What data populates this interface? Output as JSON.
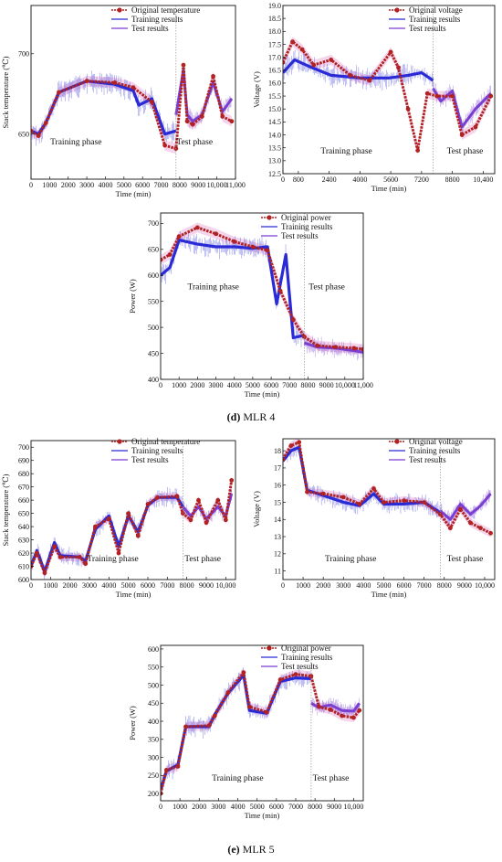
{
  "captions": {
    "d_letter": "(d)",
    "d_text": " MLR 4",
    "e_letter": "(e)",
    "e_text": " MLR 5"
  },
  "colors": {
    "original": "#b22222",
    "training": "#2a2ad6",
    "test": "#7a3fd1",
    "shade": "#f2c7e6"
  },
  "chart_data": [
    {
      "id": "d-temp",
      "type": "line",
      "ylabel": "Stack temperature (℃)",
      "xlabel": "Time (min)",
      "xlim": [
        0,
        11000
      ],
      "ylim": [
        622,
        730
      ],
      "xticks": [
        "0",
        "1000",
        "2000",
        "3000",
        "4000",
        "5000",
        "6000",
        "7000",
        "8000",
        "9000",
        "10,000",
        "11,000"
      ],
      "yticks": [
        "650",
        "700"
      ],
      "phase_labels": {
        "training": "Training phase",
        "test": "Test phase"
      },
      "split_x": 7800,
      "legend": [
        "Original temperature",
        "Training results",
        "Test results"
      ],
      "series": [
        {
          "name": "Original temperature",
          "x": [
            0,
            400,
            800,
            1500,
            3000,
            4500,
            5500,
            6500,
            7200,
            7800,
            8200,
            8400,
            8700,
            9200,
            9800,
            10300,
            10800
          ],
          "y": [
            652,
            649,
            657,
            676,
            683,
            682,
            679,
            670,
            643,
            641,
            693,
            658,
            656,
            661,
            686,
            661,
            658
          ]
        },
        {
          "name": "Training results",
          "x": [
            0,
            400,
            800,
            1500,
            3000,
            4500,
            5500,
            5800,
            6500,
            7200,
            7800
          ],
          "y": [
            652,
            650,
            657,
            676,
            683,
            681,
            677,
            668,
            672,
            650,
            652
          ]
        },
        {
          "name": "Test results",
          "x": [
            7800,
            8200,
            8400,
            8700,
            9200,
            9800,
            10300,
            10800
          ],
          "y": [
            662,
            690,
            662,
            658,
            662,
            682,
            664,
            672
          ]
        }
      ]
    },
    {
      "id": "d-volt",
      "type": "line",
      "ylabel": "Voltage (V)",
      "xlabel": "Time (min)",
      "xlim": [
        0,
        11000
      ],
      "ylim": [
        12.5,
        19.0
      ],
      "xticks": [
        "0",
        "800",
        "2400",
        "4000",
        "5600",
        "7200",
        "8800",
        "10,400"
      ],
      "yticks": [
        "12.5",
        "13.0",
        "13.5",
        "14.0",
        "14.5",
        "15.0",
        "15.5",
        "16.0",
        "16.5",
        "17.0",
        "17.5",
        "18.0",
        "18.5",
        "19.0"
      ],
      "phase_labels": {
        "training": "Training phase",
        "test": "Test phase"
      },
      "split_x": 7800,
      "legend": [
        "Original voltage",
        "Training results",
        "Test results"
      ],
      "series": [
        {
          "name": "Original voltage",
          "x": [
            0,
            500,
            1000,
            1600,
            2500,
            3500,
            4500,
            5600,
            6000,
            6500,
            7000,
            7500,
            8000,
            8800,
            9300,
            10000,
            10800
          ],
          "y": [
            16.8,
            17.6,
            17.3,
            16.7,
            16.9,
            16.3,
            16.1,
            17.2,
            16.6,
            15.0,
            13.4,
            15.6,
            15.5,
            15.5,
            14.0,
            14.3,
            15.5
          ]
        },
        {
          "name": "Training results",
          "x": [
            0,
            600,
            1500,
            2500,
            4000,
            5500,
            6500,
            7200,
            7800
          ],
          "y": [
            16.4,
            16.9,
            16.6,
            16.3,
            16.2,
            16.2,
            16.3,
            16.4,
            16.1
          ]
        },
        {
          "name": "Test results",
          "x": [
            7800,
            8200,
            8800,
            9300,
            10000,
            10800
          ],
          "y": [
            15.8,
            15.3,
            15.7,
            14.3,
            15.0,
            15.6
          ]
        }
      ]
    },
    {
      "id": "d-power",
      "type": "line",
      "ylabel": "Power (W)",
      "xlabel": "Time (min)",
      "xlim": [
        0,
        11000
      ],
      "ylim": [
        400,
        720
      ],
      "xticks": [
        "0",
        "1000",
        "2000",
        "3000",
        "4000",
        "5000",
        "6000",
        "7000",
        "8000",
        "9000",
        "10,000",
        "11,000"
      ],
      "yticks": [
        "400",
        "450",
        "500",
        "550",
        "600",
        "650",
        "700"
      ],
      "phase_labels": {
        "training": "Training phase",
        "test": "Test phase"
      },
      "split_x": 7800,
      "legend": [
        "Original power",
        "Training results",
        "Test results"
      ],
      "series": [
        {
          "name": "Original power",
          "x": [
            0,
            500,
            1000,
            2000,
            3000,
            4000,
            5000,
            5800,
            6500,
            7200,
            7800,
            8500,
            9500,
            10500,
            11000
          ],
          "y": [
            630,
            640,
            675,
            692,
            680,
            665,
            655,
            648,
            570,
            515,
            482,
            465,
            462,
            460,
            458
          ]
        },
        {
          "name": "Training results",
          "x": [
            0,
            500,
            1000,
            2000,
            3000,
            4000,
            5000,
            5800,
            6300,
            6800,
            7200,
            7800
          ],
          "y": [
            600,
            615,
            668,
            660,
            655,
            655,
            652,
            655,
            545,
            640,
            480,
            485
          ]
        },
        {
          "name": "Test results",
          "x": [
            7800,
            8500,
            9500,
            10500,
            11000
          ],
          "y": [
            470,
            462,
            460,
            455,
            452
          ]
        }
      ]
    },
    {
      "id": "e-temp",
      "type": "line",
      "ylabel": "Stack temperature (℃)",
      "xlabel": "Time (min)",
      "xlim": [
        0,
        10500
      ],
      "ylim": [
        600,
        705
      ],
      "xticks": [
        "0",
        "1000",
        "2000",
        "3000",
        "4000",
        "5000",
        "6000",
        "7000",
        "8000",
        "9000",
        "10,000"
      ],
      "yticks": [
        "600",
        "610",
        "620",
        "630",
        "640",
        "650",
        "660",
        "670",
        "680",
        "690",
        "700"
      ],
      "phase_labels": {
        "training": "Training phase",
        "test": "Test phase"
      },
      "split_x": 7800,
      "legend": [
        "Original temperature",
        "Training results",
        "Test results"
      ],
      "series": [
        {
          "name": "Original temperature",
          "x": [
            0,
            300,
            700,
            1200,
            1500,
            2500,
            2800,
            3300,
            4000,
            4500,
            5000,
            5500,
            6000,
            6500,
            7500,
            7800,
            8200,
            8600,
            9000,
            9600,
            10000,
            10300
          ],
          "y": [
            610,
            620,
            605,
            625,
            617,
            617,
            612,
            640,
            646,
            620,
            650,
            633,
            657,
            662,
            663,
            650,
            645,
            660,
            643,
            660,
            645,
            675
          ]
        },
        {
          "name": "Training results",
          "x": [
            0,
            300,
            700,
            1200,
            1500,
            2500,
            2800,
            3300,
            4000,
            4500,
            5000,
            5500,
            6000,
            6500,
            7500,
            7800
          ],
          "y": [
            610,
            622,
            606,
            628,
            618,
            617,
            614,
            638,
            648,
            625,
            648,
            636,
            656,
            662,
            662,
            655
          ]
        },
        {
          "name": "Test results",
          "x": [
            7800,
            8200,
            8600,
            9000,
            9600,
            10000,
            10300
          ],
          "y": [
            655,
            648,
            655,
            646,
            655,
            648,
            665
          ]
        }
      ]
    },
    {
      "id": "e-volt",
      "type": "line",
      "ylabel": "Voltage (V)",
      "xlabel": "Time (min)",
      "xlim": [
        0,
        10500
      ],
      "ylim": [
        10.5,
        18.7
      ],
      "xticks": [
        "0",
        "1000",
        "2000",
        "3000",
        "4000",
        "5000",
        "6000",
        "7000",
        "8000",
        "9000",
        "10,000"
      ],
      "yticks": [
        "11",
        "12",
        "13",
        "14",
        "15",
        "16",
        "17",
        "18"
      ],
      "phase_labels": {
        "training": "Training phase",
        "test": "Test phase"
      },
      "split_x": 7800,
      "legend": [
        "Original voltage",
        "Training results",
        "Test results"
      ],
      "series": [
        {
          "name": "Original voltage",
          "x": [
            0,
            400,
            800,
            1200,
            2000,
            3000,
            3800,
            4500,
            5000,
            6000,
            7000,
            7800,
            8300,
            8800,
            9300,
            9800,
            10300
          ],
          "y": [
            17.5,
            18.3,
            18.5,
            15.6,
            15.5,
            15.3,
            14.9,
            15.8,
            15.0,
            15.1,
            15.0,
            14.3,
            13.5,
            14.6,
            13.8,
            13.5,
            13.2
          ]
        },
        {
          "name": "Training results",
          "x": [
            0,
            400,
            800,
            1200,
            2000,
            3000,
            3800,
            4500,
            5000,
            6000,
            7000,
            7800
          ],
          "y": [
            17.4,
            18.0,
            18.2,
            15.7,
            15.4,
            15.0,
            14.8,
            15.5,
            14.9,
            14.9,
            15.0,
            14.4
          ]
        },
        {
          "name": "Test results",
          "x": [
            7800,
            8300,
            8800,
            9300,
            9800,
            10300
          ],
          "y": [
            14.5,
            14.0,
            14.9,
            14.3,
            14.8,
            15.5
          ]
        }
      ]
    },
    {
      "id": "e-power",
      "type": "line",
      "ylabel": "Power (W)",
      "xlabel": "Time (min)",
      "xlim": [
        0,
        10500
      ],
      "ylim": [
        180,
        610
      ],
      "xticks": [
        "0",
        "1000",
        "2000",
        "3000",
        "4000",
        "5000",
        "6000",
        "7000",
        "8000",
        "9000",
        "10,000"
      ],
      "yticks": [
        "200",
        "250",
        "300",
        "350",
        "400",
        "450",
        "500",
        "550",
        "600"
      ],
      "phase_labels": {
        "training": "Training phase",
        "test": "Test phase"
      },
      "split_x": 7800,
      "legend": [
        "Original power",
        "Training results",
        "Test results"
      ],
      "series": [
        {
          "name": "Original power",
          "x": [
            0,
            300,
            900,
            1300,
            2500,
            2800,
            3500,
            4300,
            4600,
            5500,
            6200,
            7000,
            7800,
            8200,
            8800,
            9400,
            10000,
            10300
          ],
          "y": [
            200,
            265,
            275,
            385,
            388,
            415,
            480,
            535,
            440,
            425,
            515,
            530,
            525,
            440,
            432,
            415,
            410,
            430
          ]
        },
        {
          "name": "Training results",
          "x": [
            0,
            300,
            900,
            1300,
            2500,
            2800,
            3500,
            4300,
            4600,
            5500,
            6200,
            7000,
            7800
          ],
          "y": [
            210,
            262,
            280,
            385,
            385,
            418,
            478,
            528,
            430,
            422,
            510,
            520,
            518
          ]
        },
        {
          "name": "Test results",
          "x": [
            7800,
            8200,
            8800,
            9400,
            10000,
            10300
          ],
          "y": [
            450,
            438,
            445,
            430,
            428,
            450
          ]
        }
      ]
    }
  ]
}
